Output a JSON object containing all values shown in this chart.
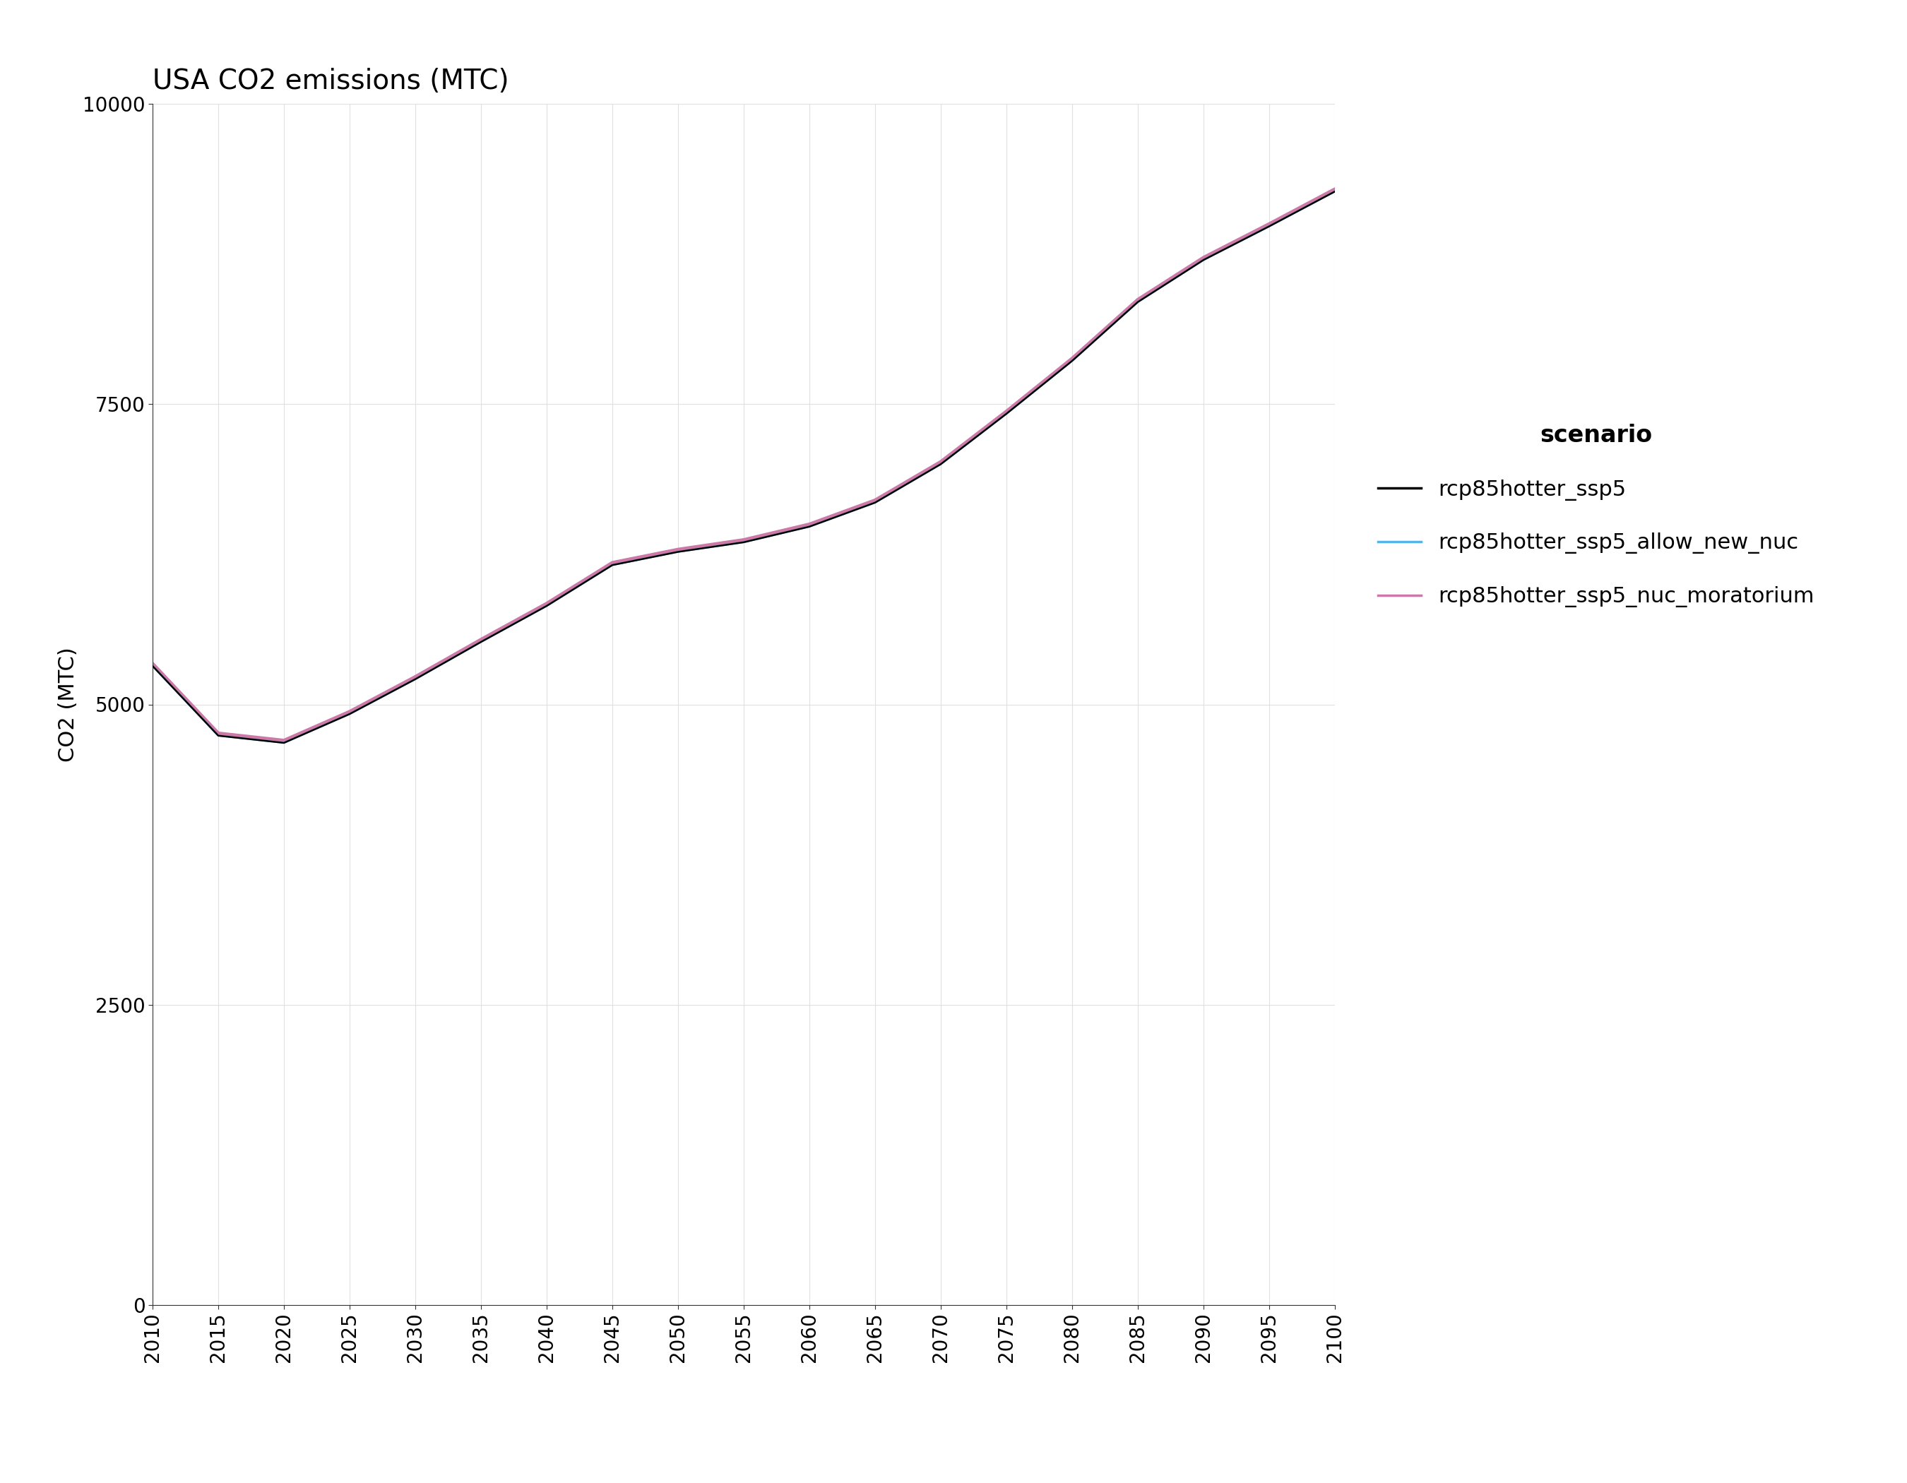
{
  "title": "USA CO2 emissions (MTC)",
  "xlabel": "",
  "ylabel": "CO2 (MTC)",
  "ylim": [
    0,
    10000
  ],
  "xlim": [
    2010,
    2100
  ],
  "yticks": [
    0,
    2500,
    5000,
    7500,
    10000
  ],
  "xticks": [
    2010,
    2015,
    2020,
    2025,
    2030,
    2035,
    2040,
    2045,
    2050,
    2055,
    2060,
    2065,
    2070,
    2075,
    2080,
    2085,
    2090,
    2095,
    2100
  ],
  "scenarios": [
    {
      "name": "rcp85hotter_ssp5",
      "color": "#000000",
      "linewidth": 1.8,
      "zorder": 3,
      "data": {
        "x": [
          2010,
          2015,
          2020,
          2025,
          2030,
          2035,
          2040,
          2045,
          2050,
          2055,
          2060,
          2065,
          2070,
          2075,
          2080,
          2085,
          2090,
          2095,
          2100
        ],
        "y": [
          5320,
          4740,
          4680,
          4920,
          5210,
          5520,
          5820,
          6160,
          6270,
          6350,
          6480,
          6680,
          7000,
          7420,
          7860,
          8350,
          8700,
          8980,
          9270
        ]
      }
    },
    {
      "name": "rcp85hotter_ssp5_allow_new_nuc",
      "color": "#56b4e9",
      "linewidth": 1.8,
      "zorder": 2,
      "data": {
        "x": [
          2010,
          2015,
          2020,
          2025,
          2030,
          2035,
          2040,
          2045,
          2050,
          2055,
          2060,
          2065,
          2070,
          2075,
          2080,
          2085,
          2090,
          2095,
          2100
        ],
        "y": [
          5320,
          4740,
          4680,
          4920,
          5210,
          5520,
          5820,
          6160,
          6270,
          6350,
          6480,
          6680,
          7000,
          7420,
          7860,
          8350,
          8700,
          8980,
          9270
        ]
      }
    },
    {
      "name": "rcp85hotter_ssp5_nuc_moratorium",
      "color": "#cc79a7",
      "linewidth": 3.5,
      "zorder": 1,
      "data": {
        "x": [
          2010,
          2015,
          2020,
          2025,
          2030,
          2035,
          2040,
          2045,
          2050,
          2055,
          2060,
          2065,
          2070,
          2075,
          2080,
          2085,
          2090,
          2095,
          2100
        ],
        "y": [
          5340,
          4760,
          4700,
          4940,
          5230,
          5540,
          5840,
          6180,
          6290,
          6370,
          6500,
          6700,
          7020,
          7440,
          7880,
          8370,
          8720,
          9000,
          9290
        ]
      }
    }
  ],
  "legend_title": "scenario",
  "background_color": "#ffffff",
  "grid_color": "#e0e0e0",
  "title_fontsize": 28,
  "axis_label_fontsize": 22,
  "tick_fontsize": 20,
  "legend_fontsize": 22,
  "legend_title_fontsize": 24
}
